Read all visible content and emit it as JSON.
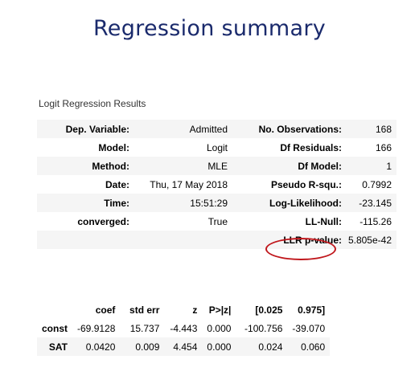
{
  "title": "Regression summary",
  "caption": "Logit Regression Results",
  "summary_rows": [
    {
      "l1": "Dep. Variable:",
      "v1": "Admitted",
      "l2": "No. Observations:",
      "v2": "168"
    },
    {
      "l1": "Model:",
      "v1": "Logit",
      "l2": "Df Residuals:",
      "v2": "166"
    },
    {
      "l1": "Method:",
      "v1": "MLE",
      "l2": "Df Model:",
      "v2": "1"
    },
    {
      "l1": "Date:",
      "v1": "Thu, 17 May 2018",
      "l2": "Pseudo R-squ.:",
      "v2": "0.7992"
    },
    {
      "l1": "Time:",
      "v1": "15:51:29",
      "l2": "Log-Likelihood:",
      "v2": "-23.145"
    },
    {
      "l1": "converged:",
      "v1": "True",
      "l2": "LL-Null:",
      "v2": "-115.26"
    },
    {
      "l1": "",
      "v1": "",
      "l2": "LLR p-value:",
      "v2": "5.805e-42"
    }
  ],
  "coef_table": {
    "headers": [
      "",
      "coef",
      "std err",
      "z",
      "P>|z|",
      "[0.025",
      "0.975]"
    ],
    "rows": [
      [
        "const",
        "-69.9128",
        "15.737",
        "-4.443",
        "0.000",
        "-100.756",
        "-39.070"
      ],
      [
        "SAT",
        "0.0420",
        "0.009",
        "4.454",
        "0.000",
        "0.024",
        "0.060"
      ]
    ]
  },
  "highlight_color": "#c0171c",
  "title_color": "#1a2a6c"
}
